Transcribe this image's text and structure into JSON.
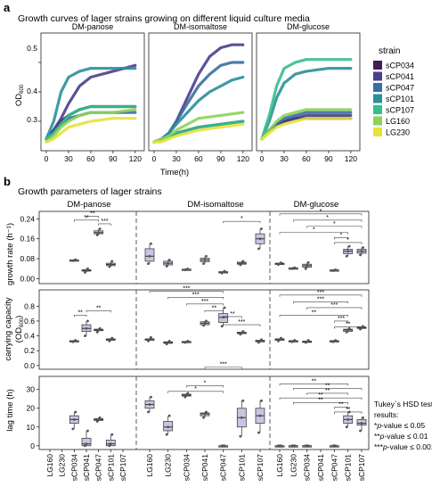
{
  "panel_a": {
    "letter": "a",
    "title": "Growth curves of lager strains growing on different liquid culture media",
    "ylabel": "OD",
    "ylabel_sub": "600",
    "xlabel": "Time(h)",
    "legend_title": "strain",
    "strains": [
      {
        "name": "sCP034",
        "color": "#3f1e57"
      },
      {
        "name": "sCP041",
        "color": "#4a3f8e"
      },
      {
        "name": "sCP047",
        "color": "#3a6ea0"
      },
      {
        "name": "sCP101",
        "color": "#2b8f99"
      },
      {
        "name": "sCP107",
        "color": "#34c08a"
      },
      {
        "name": "LG160",
        "color": "#8fd15a"
      },
      {
        "name": "LG230",
        "color": "#e6e23a"
      }
    ]
  },
  "panel_b": {
    "letter": "b",
    "title": "Growth parameters of lager strains",
    "media": [
      "DM-panose",
      "DM-isomaltose",
      "DM-glucose"
    ],
    "x_categories": [
      "LG160",
      "LG230",
      "sCP034",
      "sCP041",
      "sCP047",
      "sCP101",
      "sCP107"
    ],
    "rows": [
      {
        "ylabel": "growth rate (h⁻¹)",
        "ticks": [
          "0.00",
          "0.08",
          "0.16",
          "0.24"
        ]
      },
      {
        "ylabel": "carrying capacity",
        "ylabel2": "(OD",
        "ylabel2_sub": "600",
        "ylabel2_end": ")",
        "ticks": [
          "0.0",
          "0.2",
          "0.4",
          "0.6",
          "0.8"
        ]
      },
      {
        "ylabel": "lag time (h)",
        "ticks": [
          "0",
          "10",
          "20",
          "30"
        ]
      }
    ],
    "tukey": {
      "title": "Tukey`s HSD test",
      "title2": "results:",
      "l1_star": "*",
      "l1_p": "p",
      "l1_rest": "-value ≤ 0.05",
      "l2_star": "**",
      "l2_p": "p",
      "l2_rest": "-value ≤ 0.01",
      "l3_star": "***",
      "l3_p": "p",
      "l3_rest": "-value ≤ 0.001"
    }
  },
  "chart_data": [
    {
      "type": "line",
      "panel": "a",
      "title": "DM-panose",
      "xlabel": "Time(h)",
      "ylabel": "OD600",
      "xlim": [
        0,
        125
      ],
      "ylim": [
        0.2,
        0.6
      ],
      "xticks": [
        0,
        30,
        60,
        90,
        120
      ],
      "yticks": [
        0.3,
        0.4,
        0.5
      ],
      "series": [
        {
          "name": "sCP034",
          "x": [
            0,
            10,
            20,
            30,
            45,
            60,
            90,
            120
          ],
          "values": [
            0.24,
            0.27,
            0.3,
            0.32,
            0.34,
            0.35,
            0.35,
            0.35
          ]
        },
        {
          "name": "sCP041",
          "x": [
            0,
            10,
            20,
            30,
            45,
            60,
            90,
            120
          ],
          "values": [
            0.24,
            0.27,
            0.31,
            0.36,
            0.42,
            0.45,
            0.47,
            0.49
          ]
        },
        {
          "name": "sCP047",
          "x": [
            0,
            10,
            20,
            30,
            45,
            60,
            90,
            120
          ],
          "values": [
            0.24,
            0.26,
            0.29,
            0.31,
            0.32,
            0.33,
            0.33,
            0.33
          ]
        },
        {
          "name": "sCP101",
          "x": [
            0,
            10,
            20,
            30,
            45,
            60,
            90,
            120
          ],
          "values": [
            0.24,
            0.3,
            0.4,
            0.45,
            0.47,
            0.48,
            0.48,
            0.48
          ]
        },
        {
          "name": "sCP107",
          "x": [
            0,
            10,
            20,
            30,
            45,
            60,
            90,
            120
          ],
          "values": [
            0.24,
            0.26,
            0.29,
            0.32,
            0.34,
            0.35,
            0.35,
            0.35
          ]
        },
        {
          "name": "LG160",
          "x": [
            0,
            10,
            20,
            30,
            45,
            60,
            90,
            120
          ],
          "values": [
            0.23,
            0.25,
            0.28,
            0.3,
            0.32,
            0.33,
            0.33,
            0.34
          ]
        },
        {
          "name": "LG230",
          "x": [
            0,
            10,
            20,
            30,
            45,
            60,
            90,
            120
          ],
          "values": [
            0.23,
            0.24,
            0.26,
            0.28,
            0.29,
            0.3,
            0.31,
            0.31
          ]
        }
      ]
    },
    {
      "type": "line",
      "panel": "a",
      "title": "DM-isomaltose",
      "xlabel": "Time(h)",
      "xlim": [
        0,
        125
      ],
      "ylim": [
        0.2,
        0.6
      ],
      "xticks": [
        0,
        30,
        60,
        90,
        120
      ],
      "series": [
        {
          "name": "sCP034",
          "x": [
            0,
            10,
            20,
            30,
            45,
            60,
            90,
            120
          ],
          "values": [
            0.23,
            0.24,
            0.25,
            0.26,
            0.27,
            0.28,
            0.29,
            0.3
          ]
        },
        {
          "name": "sCP041",
          "x": [
            0,
            10,
            20,
            30,
            45,
            60,
            75,
            90,
            105,
            120
          ],
          "values": [
            0.23,
            0.24,
            0.26,
            0.3,
            0.38,
            0.46,
            0.52,
            0.55,
            0.56,
            0.56
          ]
        },
        {
          "name": "sCP047",
          "x": [
            0,
            10,
            20,
            30,
            45,
            60,
            75,
            90,
            105,
            120
          ],
          "values": [
            0.23,
            0.24,
            0.26,
            0.3,
            0.36,
            0.42,
            0.46,
            0.49,
            0.5,
            0.5
          ]
        },
        {
          "name": "sCP101",
          "x": [
            0,
            10,
            20,
            30,
            45,
            60,
            75,
            90,
            105,
            120
          ],
          "values": [
            0.23,
            0.24,
            0.26,
            0.29,
            0.33,
            0.37,
            0.4,
            0.42,
            0.44,
            0.45
          ]
        },
        {
          "name": "sCP107",
          "x": [
            0,
            10,
            20,
            30,
            45,
            60,
            90,
            120
          ],
          "values": [
            0.23,
            0.24,
            0.25,
            0.26,
            0.27,
            0.28,
            0.29,
            0.3
          ]
        },
        {
          "name": "LG160",
          "x": [
            0,
            10,
            20,
            30,
            45,
            60,
            90,
            120
          ],
          "values": [
            0.23,
            0.24,
            0.25,
            0.27,
            0.29,
            0.31,
            0.32,
            0.33
          ]
        },
        {
          "name": "LG230",
          "x": [
            0,
            10,
            20,
            30,
            45,
            60,
            90,
            120
          ],
          "values": [
            0.23,
            0.23,
            0.24,
            0.25,
            0.26,
            0.27,
            0.28,
            0.29
          ]
        }
      ]
    },
    {
      "type": "line",
      "panel": "a",
      "title": "DM-glucose",
      "xlabel": "Time(h)",
      "xlim": [
        0,
        125
      ],
      "ylim": [
        0.2,
        0.6
      ],
      "xticks": [
        0,
        30,
        60,
        90,
        120
      ],
      "series": [
        {
          "name": "sCP034",
          "x": [
            0,
            10,
            20,
            30,
            45,
            60,
            90,
            120
          ],
          "values": [
            0.24,
            0.27,
            0.29,
            0.3,
            0.31,
            0.31,
            0.31,
            0.31
          ]
        },
        {
          "name": "sCP041",
          "x": [
            0,
            10,
            20,
            30,
            45,
            60,
            90,
            120
          ],
          "values": [
            0.24,
            0.27,
            0.29,
            0.3,
            0.31,
            0.32,
            0.32,
            0.32
          ]
        },
        {
          "name": "sCP047",
          "x": [
            0,
            10,
            20,
            30,
            45,
            60,
            90,
            120
          ],
          "values": [
            0.24,
            0.27,
            0.29,
            0.31,
            0.32,
            0.33,
            0.33,
            0.33
          ]
        },
        {
          "name": "sCP101",
          "x": [
            0,
            10,
            20,
            30,
            45,
            60,
            90,
            120
          ],
          "values": [
            0.24,
            0.3,
            0.38,
            0.43,
            0.46,
            0.47,
            0.48,
            0.48
          ]
        },
        {
          "name": "sCP107",
          "x": [
            0,
            10,
            20,
            30,
            45,
            60,
            90,
            120
          ],
          "values": [
            0.24,
            0.32,
            0.42,
            0.48,
            0.5,
            0.51,
            0.51,
            0.51
          ]
        },
        {
          "name": "LG160",
          "x": [
            0,
            10,
            20,
            30,
            45,
            60,
            90,
            120
          ],
          "values": [
            0.24,
            0.27,
            0.3,
            0.32,
            0.33,
            0.34,
            0.34,
            0.34
          ]
        },
        {
          "name": "LG230",
          "x": [
            0,
            10,
            20,
            30,
            45,
            60,
            90,
            120
          ],
          "values": [
            0.24,
            0.26,
            0.28,
            0.29,
            0.3,
            0.31,
            0.31,
            0.31
          ]
        }
      ]
    },
    {
      "type": "box",
      "panel": "b",
      "ylabel": "growth rate (h⁻¹)",
      "ylim": [
        -0.02,
        0.27
      ],
      "categories": [
        "LG160",
        "LG230",
        "sCP034",
        "sCP041",
        "sCP047",
        "sCP101",
        "sCP107"
      ],
      "groups": [
        {
          "medium": "DM-panose",
          "boxes": [
            null,
            null,
            [
              0.072,
              0.073,
              0.074,
              0.075,
              0.076
            ],
            [
              0.025,
              0.03,
              0.033,
              0.036,
              0.04
            ],
            [
              0.175,
              0.18,
              0.185,
              0.192,
              0.2
            ],
            [
              0.048,
              0.052,
              0.057,
              0.062,
              0.07
            ],
            null
          ]
        },
        {
          "medium": "DM-isomaltose",
          "boxes": [
            [
              0.06,
              0.07,
              0.09,
              0.12,
              0.14
            ],
            [
              0.05,
              0.055,
              0.062,
              0.07,
              0.075
            ],
            [
              0.035,
              0.036,
              0.037,
              0.038,
              0.039
            ],
            [
              0.06,
              0.068,
              0.075,
              0.082,
              0.09
            ],
            [
              0.022,
              0.024,
              0.026,
              0.028,
              0.03
            ],
            [
              0.055,
              0.058,
              0.062,
              0.066,
              0.07
            ],
            [
              0.12,
              0.14,
              0.16,
              0.18,
              0.2
            ]
          ]
        },
        {
          "medium": "DM-glucose",
          "boxes": [
            [
              0.056,
              0.058,
              0.06,
              0.062,
              0.064
            ],
            [
              0.04,
              0.041,
              0.042,
              0.043,
              0.044
            ],
            [
              0.04,
              0.046,
              0.052,
              0.058,
              0.065
            ],
            null,
            [
              0.032,
              0.033,
              0.034,
              0.035,
              0.036
            ],
            [
              0.09,
              0.1,
              0.11,
              0.118,
              0.13
            ],
            [
              0.095,
              0.102,
              0.11,
              0.118,
              0.125
            ]
          ]
        }
      ]
    },
    {
      "type": "box",
      "panel": "b",
      "ylabel": "carrying capacity (OD600)",
      "ylim": [
        -0.05,
        1.02
      ],
      "categories": [
        "LG160",
        "LG230",
        "sCP034",
        "sCP041",
        "sCP047",
        "sCP101",
        "sCP107"
      ],
      "groups": [
        {
          "medium": "DM-panose",
          "boxes": [
            null,
            null,
            [
              0.32,
              0.325,
              0.33,
              0.335,
              0.34
            ],
            [
              0.4,
              0.46,
              0.5,
              0.55,
              0.6
            ],
            [
              0.45,
              0.47,
              0.48,
              0.49,
              0.5
            ],
            [
              0.33,
              0.34,
              0.35,
              0.36,
              0.37
            ],
            null
          ]
        },
        {
          "medium": "DM-isomaltose",
          "boxes": [
            [
              0.33,
              0.34,
              0.35,
              0.36,
              0.38
            ],
            [
              0.29,
              0.3,
              0.31,
              0.32,
              0.33
            ],
            [
              0.31,
              0.315,
              0.32,
              0.325,
              0.33
            ],
            [
              0.54,
              0.55,
              0.57,
              0.59,
              0.6
            ],
            [
              0.53,
              0.58,
              0.65,
              0.7,
              0.78
            ],
            [
              0.42,
              0.43,
              0.44,
              0.45,
              0.46
            ],
            [
              0.31,
              0.32,
              0.33,
              0.34,
              0.35
            ]
          ]
        },
        {
          "medium": "DM-glucose",
          "boxes": [
            [
              0.33,
              0.34,
              0.35,
              0.36,
              0.37
            ],
            [
              0.32,
              0.325,
              0.33,
              0.335,
              0.34
            ],
            [
              0.31,
              0.315,
              0.32,
              0.33,
              0.34
            ],
            null,
            [
              0.32,
              0.325,
              0.33,
              0.335,
              0.34
            ],
            [
              0.45,
              0.46,
              0.48,
              0.49,
              0.5
            ],
            [
              0.49,
              0.5,
              0.51,
              0.52,
              0.53
            ]
          ]
        }
      ]
    },
    {
      "type": "box",
      "panel": "b",
      "ylabel": "lag time (h)",
      "ylim": [
        -2,
        37
      ],
      "categories": [
        "LG160",
        "LG230",
        "sCP034",
        "sCP041",
        "sCP047",
        "sCP101",
        "sCP107"
      ],
      "groups": [
        {
          "medium": "DM-panose",
          "boxes": [
            null,
            null,
            [
              9,
              12,
              14,
              16,
              18
            ],
            [
              0,
              0,
              1,
              4,
              8
            ],
            [
              13,
              13.5,
              14,
              14.5,
              15
            ],
            [
              0,
              0,
              1,
              3,
              6
            ],
            null
          ]
        },
        {
          "medium": "DM-isomaltose",
          "boxes": [
            [
              18,
              20,
              22,
              24,
              26
            ],
            [
              6,
              8,
              10,
              13,
              16
            ],
            [
              26,
              26.5,
              27,
              27.5,
              28
            ],
            [
              15,
              16,
              17,
              17.5,
              18
            ],
            [
              0,
              0,
              0,
              0,
              0
            ],
            [
              5,
              10,
              15,
              20,
              24
            ],
            [
              7,
              12,
              16,
              20,
              24
            ]
          ]
        },
        {
          "medium": "DM-glucose",
          "boxes": [
            [
              0,
              0,
              0,
              0,
              0
            ],
            [
              0,
              0,
              0,
              0,
              0
            ],
            [
              0,
              0,
              0,
              0,
              0
            ],
            null,
            [
              0,
              0,
              0,
              0,
              0
            ],
            [
              10,
              12,
              14,
              16,
              18
            ],
            [
              8,
              11,
              12,
              14,
              15
            ]
          ]
        }
      ]
    }
  ]
}
